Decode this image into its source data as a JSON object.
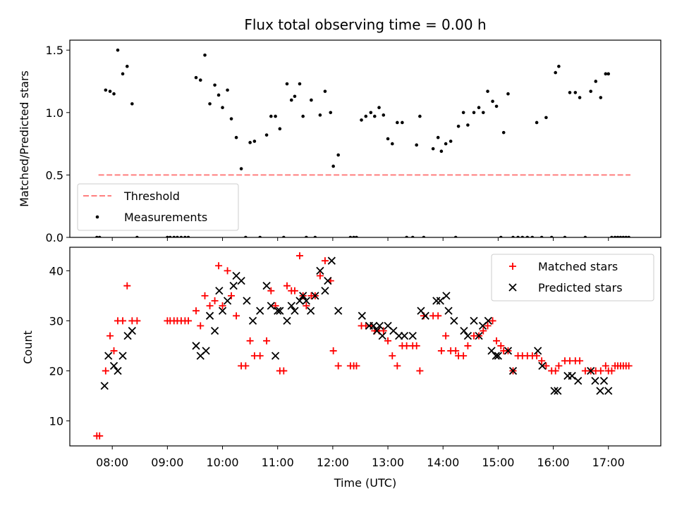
{
  "figure": {
    "title": "Flux total observing time = 0.00 h",
    "xlabel": "Time (UTC)"
  },
  "chart_data": [
    {
      "type": "scatter",
      "title": "Flux total observing time = 0.00 h",
      "ylabel": "Matched/Predicted stars",
      "ylim": [
        0,
        1.58
      ],
      "yticks": [
        0.0,
        0.5,
        1.0,
        1.5
      ],
      "ytick_labels": [
        "0.0",
        "0.5",
        "1.0",
        "1.5"
      ],
      "xlim_hours": [
        7.23,
        17.95
      ],
      "xticks_hours": [
        8,
        9,
        10,
        11,
        12,
        13,
        14,
        15,
        16,
        17
      ],
      "xtick_labels": [
        "08:00",
        "09:00",
        "10:00",
        "11:00",
        "12:00",
        "13:00",
        "14:00",
        "15:00",
        "16:00",
        "17:00"
      ],
      "legend": {
        "placement": "lower-left"
      },
      "series": [
        {
          "name": "Threshold",
          "style": "dashed-line",
          "color": "#ff7f7f",
          "x": [
            7.75,
            17.4
          ],
          "y": [
            0.5,
            0.5
          ]
        },
        {
          "name": "Measurements",
          "style": "dot",
          "color": "#000000",
          "x": [
            7.72,
            7.77,
            7.88,
            7.96,
            8.03,
            8.1,
            8.19,
            8.27,
            8.36,
            8.45,
            9.0,
            9.05,
            9.12,
            9.18,
            9.25,
            9.32,
            9.38,
            9.52,
            9.6,
            9.68,
            9.77,
            9.86,
            9.93,
            10.0,
            10.09,
            10.16,
            10.25,
            10.34,
            10.42,
            10.5,
            10.58,
            10.68,
            10.8,
            10.88,
            10.96,
            11.04,
            11.11,
            11.17,
            11.25,
            11.31,
            11.4,
            11.46,
            11.52,
            11.61,
            11.68,
            11.77,
            11.86,
            11.96,
            12.01,
            12.1,
            12.32,
            12.38,
            12.43,
            12.52,
            12.6,
            12.69,
            12.76,
            12.84,
            12.92,
            13.0,
            13.08,
            13.17,
            13.26,
            13.34,
            13.45,
            13.52,
            13.58,
            13.65,
            13.82,
            13.91,
            13.97,
            14.05,
            14.14,
            14.23,
            14.28,
            14.37,
            14.45,
            14.56,
            14.65,
            14.73,
            14.81,
            14.9,
            14.97,
            15.05,
            15.1,
            15.18,
            15.27,
            15.36,
            15.44,
            15.53,
            15.62,
            15.7,
            15.79,
            15.87,
            15.97,
            16.04,
            16.1,
            16.21,
            16.3,
            16.4,
            16.48,
            16.58,
            16.68,
            16.77,
            16.86,
            16.95,
            17.0,
            17.06,
            17.12,
            17.17,
            17.22,
            17.27,
            17.32,
            17.37
          ],
          "y": [
            0.0,
            0.0,
            1.18,
            1.17,
            1.15,
            1.5,
            1.31,
            1.37,
            1.07,
            0.0,
            0.0,
            0.0,
            0.0,
            0.0,
            0.0,
            0.0,
            0.0,
            1.28,
            1.26,
            1.46,
            1.07,
            1.22,
            1.14,
            1.04,
            1.18,
            0.95,
            0.8,
            0.55,
            0.0,
            0.76,
            0.77,
            0.0,
            0.82,
            0.97,
            0.97,
            0.87,
            0.0,
            1.23,
            1.1,
            1.13,
            1.23,
            0.97,
            0.0,
            1.1,
            0.0,
            0.98,
            1.17,
            1.0,
            0.57,
            0.66,
            0.0,
            0.0,
            0.0,
            0.94,
            0.97,
            1.0,
            0.97,
            1.04,
            0.98,
            0.79,
            0.75,
            0.92,
            0.92,
            0.0,
            0.0,
            0.74,
            0.97,
            0.0,
            0.71,
            0.8,
            0.69,
            0.75,
            0.77,
            0.0,
            0.89,
            1.0,
            0.9,
            1.0,
            1.04,
            1.0,
            1.17,
            1.09,
            1.05,
            0.0,
            0.84,
            1.15,
            0.0,
            0.0,
            0.0,
            0.0,
            0.0,
            0.92,
            0.0,
            0.96,
            0.0,
            1.32,
            1.37,
            0.0,
            1.16,
            1.16,
            1.12,
            0.0,
            1.17,
            1.25,
            1.12,
            1.31,
            1.31,
            0.0,
            0.0,
            0.0,
            0.0,
            0.0,
            0.0,
            0.0
          ]
        }
      ]
    },
    {
      "type": "scatter",
      "ylabel": "Count",
      "ylim": [
        5,
        44.7
      ],
      "yticks": [
        10,
        20,
        30,
        40
      ],
      "ytick_labels": [
        "10",
        "20",
        "30",
        "40"
      ],
      "xlim_hours": [
        7.23,
        17.95
      ],
      "xticks_hours": [
        8,
        9,
        10,
        11,
        12,
        13,
        14,
        15,
        16,
        17
      ],
      "xtick_labels": [
        "08:00",
        "09:00",
        "10:00",
        "11:00",
        "12:00",
        "13:00",
        "14:00",
        "15:00",
        "16:00",
        "17:00"
      ],
      "legend": {
        "placement": "top-right"
      },
      "series": [
        {
          "name": "Matched stars",
          "marker": "plus",
          "color": "#ff0000",
          "x": [
            7.72,
            7.77,
            7.88,
            7.96,
            8.03,
            8.1,
            8.19,
            8.27,
            8.36,
            8.45,
            9.0,
            9.05,
            9.12,
            9.18,
            9.25,
            9.32,
            9.38,
            9.52,
            9.6,
            9.68,
            9.77,
            9.86,
            9.93,
            10.0,
            10.09,
            10.16,
            10.25,
            10.34,
            10.42,
            10.5,
            10.58,
            10.68,
            10.8,
            10.88,
            10.96,
            11.04,
            11.11,
            11.17,
            11.25,
            11.31,
            11.4,
            11.46,
            11.52,
            11.61,
            11.68,
            11.77,
            11.86,
            11.96,
            12.01,
            12.1,
            12.32,
            12.38,
            12.43,
            12.52,
            12.6,
            12.69,
            12.76,
            12.84,
            12.92,
            13.0,
            13.08,
            13.17,
            13.26,
            13.34,
            13.45,
            13.52,
            13.58,
            13.65,
            13.82,
            13.91,
            13.97,
            14.05,
            14.14,
            14.23,
            14.28,
            14.37,
            14.45,
            14.56,
            14.65,
            14.73,
            14.81,
            14.9,
            14.97,
            15.05,
            15.1,
            15.18,
            15.27,
            15.36,
            15.44,
            15.53,
            15.62,
            15.7,
            15.79,
            15.87,
            15.97,
            16.04,
            16.1,
            16.21,
            16.3,
            16.4,
            16.48,
            16.58,
            16.68,
            16.77,
            16.86,
            16.95,
            17.0,
            17.06,
            17.12,
            17.17,
            17.22,
            17.27,
            17.32,
            17.37
          ],
          "y": [
            7,
            7,
            20,
            27,
            24,
            30,
            30,
            37,
            30,
            30,
            30,
            30,
            30,
            30,
            30,
            30,
            30,
            32,
            29,
            35,
            33,
            34,
            41,
            33,
            40,
            35,
            31,
            21,
            21,
            26,
            23,
            23,
            26,
            36,
            33,
            20,
            20,
            37,
            36,
            36,
            43,
            35,
            33,
            35,
            35,
            39,
            42,
            38,
            24,
            21,
            21,
            21,
            21,
            29,
            29,
            29,
            28,
            28,
            28,
            26,
            23,
            21,
            25,
            25,
            25,
            25,
            20,
            31,
            31,
            31,
            24,
            27,
            24,
            24,
            23,
            23,
            25,
            27,
            27,
            28,
            29,
            30,
            26,
            25,
            24,
            24,
            20,
            23,
            23,
            23,
            23,
            23,
            22,
            21,
            20,
            20,
            21,
            22,
            22,
            22,
            22,
            20,
            20,
            20,
            20,
            21,
            20,
            20,
            21,
            21,
            21,
            21,
            21,
            21
          ]
        },
        {
          "name": "Predicted stars",
          "marker": "x",
          "color": "#000000",
          "x": [
            7.86,
            7.93,
            8.03,
            8.1,
            8.19,
            8.28,
            8.36,
            9.52,
            9.6,
            9.7,
            9.77,
            9.86,
            9.94,
            10.0,
            10.09,
            10.2,
            10.25,
            10.34,
            10.44,
            10.55,
            10.68,
            10.8,
            10.88,
            10.96,
            11.0,
            11.04,
            11.17,
            11.25,
            11.31,
            11.4,
            11.46,
            11.52,
            11.6,
            11.68,
            11.77,
            11.86,
            11.91,
            11.98,
            12.1,
            12.53,
            12.66,
            12.74,
            12.8,
            12.85,
            12.9,
            13.0,
            13.1,
            13.2,
            13.3,
            13.45,
            13.6,
            13.68,
            13.88,
            13.95,
            14.06,
            14.1,
            14.2,
            14.38,
            14.45,
            14.56,
            14.65,
            14.72,
            14.82,
            14.88,
            14.96,
            15.0,
            15.18,
            15.27,
            15.72,
            15.8,
            16.02,
            16.08,
            16.26,
            16.34,
            16.45,
            16.68,
            16.76,
            16.85,
            16.92,
            17.0
          ],
          "y": [
            17,
            23,
            21,
            20,
            23,
            27,
            28,
            25,
            23,
            24,
            31,
            28,
            36,
            32,
            34,
            37,
            39,
            38,
            34,
            30,
            32,
            37,
            33,
            23,
            32,
            32,
            30,
            33,
            32,
            34,
            35,
            34,
            32,
            35,
            40,
            36,
            38,
            42,
            32,
            31,
            29,
            29,
            28,
            29,
            27,
            29,
            28,
            27,
            27,
            27,
            32,
            31,
            34,
            34,
            35,
            32,
            30,
            28,
            27,
            30,
            27,
            29,
            30,
            24,
            23,
            23,
            24,
            20,
            24,
            21,
            16,
            16,
            19,
            19,
            18,
            20,
            18,
            16,
            18,
            16
          ]
        }
      ]
    }
  ]
}
